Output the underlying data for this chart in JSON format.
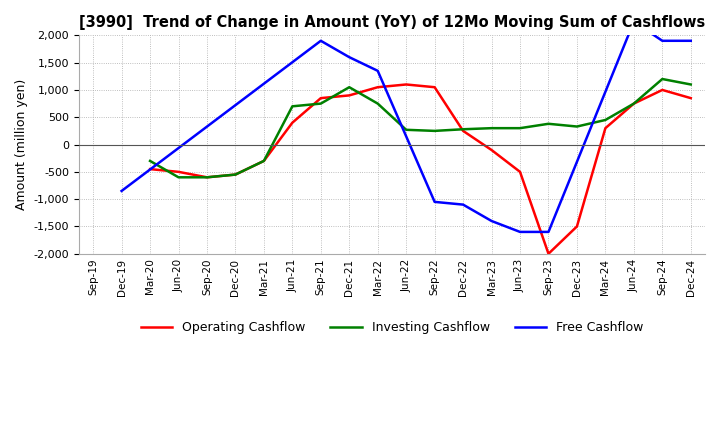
{
  "title": "[3990]  Trend of Change in Amount (YoY) of 12Mo Moving Sum of Cashflows",
  "ylabel": "Amount (million yen)",
  "ylim": [
    -2000,
    2000
  ],
  "yticks": [
    -2000,
    -1500,
    -1000,
    -500,
    0,
    500,
    1000,
    1500,
    2000
  ],
  "x_labels": [
    "Sep-19",
    "Dec-19",
    "Mar-20",
    "Jun-20",
    "Sep-20",
    "Dec-20",
    "Mar-21",
    "Jun-21",
    "Sep-21",
    "Dec-21",
    "Mar-22",
    "Jun-22",
    "Sep-22",
    "Dec-22",
    "Mar-23",
    "Jun-23",
    "Sep-23",
    "Dec-23",
    "Mar-24",
    "Jun-24",
    "Sep-24",
    "Dec-24"
  ],
  "operating": [
    null,
    null,
    -450,
    -500,
    -600,
    -550,
    -300,
    400,
    850,
    900,
    1050,
    1100,
    1050,
    250,
    -100,
    -500,
    -2000,
    -1500,
    300,
    750,
    1000,
    850
  ],
  "investing": [
    null,
    null,
    -300,
    -600,
    -600,
    -550,
    -300,
    700,
    750,
    1050,
    750,
    270,
    250,
    280,
    300,
    300,
    380,
    330,
    450,
    750,
    1200,
    1100
  ],
  "free": [
    null,
    -850,
    null,
    null,
    null,
    null,
    null,
    null,
    1900,
    1600,
    1350,
    null,
    -1050,
    -1100,
    -1400,
    -1600,
    -1600,
    null,
    null,
    2250,
    1900,
    1900
  ],
  "operating_color": "#ff0000",
  "investing_color": "#008000",
  "free_color": "#0000ff",
  "background_color": "#ffffff",
  "grid_color": "#aaaaaa"
}
